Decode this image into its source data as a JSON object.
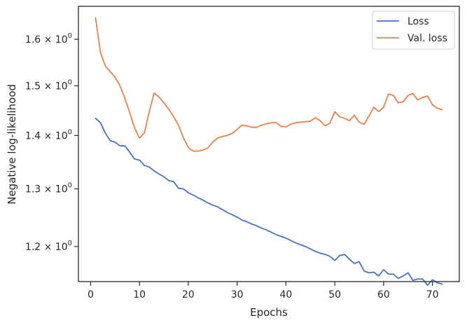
{
  "chart_data": {
    "type": "line",
    "title": "",
    "xlabel": "Epochs",
    "ylabel": "Negative log-likelihood",
    "y_scale": "log",
    "xlim": [
      -2.5,
      75.5
    ],
    "ylim": [
      1.143,
      1.675
    ],
    "x_ticks": [
      0,
      10,
      20,
      30,
      40,
      50,
      60,
      70
    ],
    "x_tick_labels": [
      "0",
      "10",
      "20",
      "30",
      "40",
      "50",
      "60",
      "70"
    ],
    "y_ticks": [
      1.2,
      1.3,
      1.4,
      1.5,
      1.6
    ],
    "y_tick_labels": [
      {
        "mantissa": "1.2",
        "sep": " × ",
        "base": "10",
        "exp": "0"
      },
      {
        "mantissa": "1.3",
        "sep": " × ",
        "base": "10",
        "exp": "0"
      },
      {
        "mantissa": "1.4",
        "sep": " × ",
        "base": "10",
        "exp": "0"
      },
      {
        "mantissa": "1.5",
        "sep": " × ",
        "base": "10",
        "exp": "0"
      },
      {
        "mantissa": "1.6",
        "sep": " × ",
        "base": "10",
        "exp": "0"
      }
    ],
    "grid": false,
    "legend_position": "top-right",
    "series": [
      {
        "name": "Loss",
        "color": "#4c72b0",
        "x": [
          1,
          2,
          3,
          4,
          5,
          6,
          7,
          8,
          9,
          10,
          11,
          12,
          13,
          14,
          15,
          16,
          17,
          18,
          19,
          20,
          21,
          22,
          23,
          24,
          25,
          26,
          27,
          28,
          29,
          30,
          31,
          32,
          33,
          34,
          35,
          36,
          37,
          38,
          39,
          40,
          41,
          42,
          43,
          44,
          45,
          46,
          47,
          48,
          49,
          50,
          51,
          52,
          53,
          54,
          55,
          56,
          57,
          58,
          59,
          60,
          61,
          62,
          63,
          64,
          65,
          66,
          67,
          68,
          69,
          70,
          71,
          72
        ],
        "values": [
          1.434,
          1.425,
          1.405,
          1.39,
          1.387,
          1.38,
          1.38,
          1.368,
          1.355,
          1.353,
          1.343,
          1.34,
          1.333,
          1.327,
          1.322,
          1.315,
          1.313,
          1.301,
          1.3,
          1.293,
          1.289,
          1.284,
          1.28,
          1.275,
          1.271,
          1.268,
          1.263,
          1.258,
          1.254,
          1.25,
          1.245,
          1.242,
          1.238,
          1.235,
          1.231,
          1.228,
          1.224,
          1.22,
          1.217,
          1.214,
          1.21,
          1.206,
          1.203,
          1.2,
          1.196,
          1.192,
          1.189,
          1.187,
          1.184,
          1.177,
          1.185,
          1.187,
          1.179,
          1.172,
          1.175,
          1.16,
          1.157,
          1.158,
          1.152,
          1.162,
          1.155,
          1.155,
          1.148,
          1.152,
          1.157,
          1.145,
          1.147,
          1.147,
          1.137,
          1.146,
          1.141,
          1.139
        ]
      },
      {
        "name": "Val. loss",
        "color": "#dd8452",
        "x": [
          1,
          2,
          3,
          4,
          5,
          6,
          7,
          8,
          9,
          10,
          11,
          12,
          13,
          14,
          15,
          16,
          17,
          18,
          19,
          20,
          21,
          22,
          23,
          24,
          25,
          26,
          27,
          28,
          29,
          30,
          31,
          32,
          33,
          34,
          35,
          36,
          37,
          38,
          39,
          40,
          41,
          42,
          43,
          44,
          45,
          46,
          47,
          48,
          49,
          50,
          51,
          52,
          53,
          54,
          55,
          56,
          57,
          58,
          59,
          60,
          61,
          62,
          63,
          64,
          65,
          66,
          67,
          68,
          69,
          70,
          71,
          72
        ],
        "values": [
          1.649,
          1.572,
          1.542,
          1.53,
          1.518,
          1.5,
          1.475,
          1.445,
          1.415,
          1.395,
          1.405,
          1.446,
          1.485,
          1.477,
          1.465,
          1.452,
          1.437,
          1.42,
          1.396,
          1.377,
          1.37,
          1.37,
          1.372,
          1.376,
          1.387,
          1.395,
          1.398,
          1.4,
          1.404,
          1.412,
          1.42,
          1.419,
          1.416,
          1.416,
          1.42,
          1.423,
          1.425,
          1.425,
          1.418,
          1.417,
          1.422,
          1.425,
          1.426,
          1.427,
          1.428,
          1.435,
          1.429,
          1.419,
          1.424,
          1.447,
          1.437,
          1.434,
          1.429,
          1.44,
          1.426,
          1.422,
          1.438,
          1.456,
          1.447,
          1.456,
          1.483,
          1.48,
          1.465,
          1.467,
          1.48,
          1.484,
          1.471,
          1.476,
          1.479,
          1.461,
          1.454,
          1.451
        ]
      }
    ]
  }
}
